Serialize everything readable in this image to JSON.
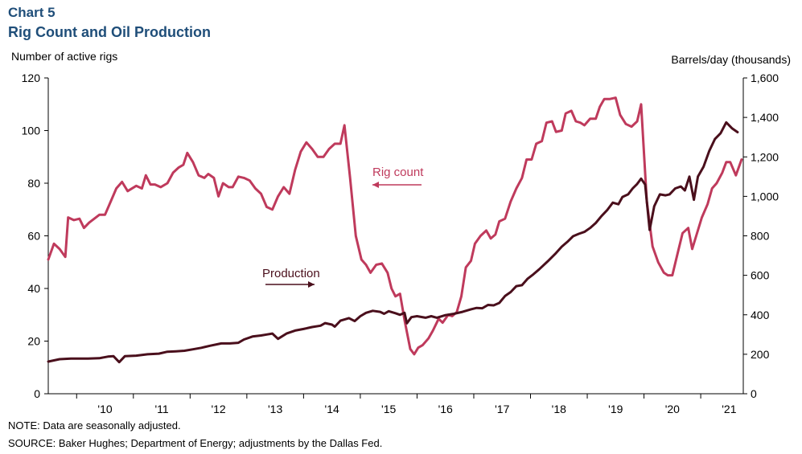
{
  "header": {
    "chart_number": "Chart 5",
    "title": "Rig Count and Oil Production"
  },
  "footer": {
    "note": "NOTE: Data are seasonally adjusted.",
    "source": "SOURCE: Baker Hughes; Department of Energy; adjustments by the Dallas Fed."
  },
  "colors": {
    "rig_count": "#bf3a5c",
    "production": "#4a0f1c",
    "axis": "#000000"
  },
  "chart_data": {
    "type": "line",
    "ylabel_left": "Number of active rigs",
    "ylabel_right": "Barrels/day (thousands)",
    "ylim_left": [
      0,
      120
    ],
    "ylim_right": [
      0,
      1600
    ],
    "yticks_left": [
      "0",
      "20",
      "40",
      "60",
      "80",
      "100",
      "120"
    ],
    "yticks_right": [
      "0",
      "200",
      "400",
      "600",
      "800",
      "1,000",
      "1,200",
      "1,400",
      "1,600"
    ],
    "xlim": [
      2009.5,
      2021.75
    ],
    "xticks": [
      {
        "x": 2010.5,
        "label": "'10"
      },
      {
        "x": 2011.5,
        "label": "'11"
      },
      {
        "x": 2012.5,
        "label": "'12"
      },
      {
        "x": 2013.5,
        "label": "'13"
      },
      {
        "x": 2014.5,
        "label": "'14"
      },
      {
        "x": 2015.5,
        "label": "'15"
      },
      {
        "x": 2016.5,
        "label": "'16"
      },
      {
        "x": 2017.5,
        "label": "'17"
      },
      {
        "x": 2018.5,
        "label": "'18"
      },
      {
        "x": 2019.5,
        "label": "'19"
      },
      {
        "x": 2020.5,
        "label": "'20"
      },
      {
        "x": 2021.5,
        "label": "'21"
      }
    ],
    "legend": "inline",
    "grid": false,
    "annotations": [
      {
        "text": "Rig count",
        "series": "rig_count",
        "arrow": "left"
      },
      {
        "text": "Production",
        "series": "production",
        "arrow": "right"
      }
    ],
    "series": [
      {
        "name": "Rig count",
        "key": "rig_count",
        "axis": "left",
        "points": [
          [
            2009.5,
            51
          ],
          [
            2009.6,
            57
          ],
          [
            2009.7,
            55
          ],
          [
            2009.8,
            52
          ],
          [
            2009.85,
            67
          ],
          [
            2009.95,
            66
          ],
          [
            2010.05,
            66.5
          ],
          [
            2010.13,
            63
          ],
          [
            2010.22,
            65
          ],
          [
            2010.4,
            68
          ],
          [
            2010.5,
            68
          ],
          [
            2010.6,
            73
          ],
          [
            2010.7,
            78
          ],
          [
            2010.8,
            80.5
          ],
          [
            2010.9,
            77
          ],
          [
            2011.05,
            79
          ],
          [
            2011.15,
            78
          ],
          [
            2011.22,
            83
          ],
          [
            2011.3,
            79.5
          ],
          [
            2011.38,
            79.5
          ],
          [
            2011.48,
            78.5
          ],
          [
            2011.6,
            80
          ],
          [
            2011.7,
            84
          ],
          [
            2011.8,
            86
          ],
          [
            2011.88,
            87
          ],
          [
            2011.95,
            91.5
          ],
          [
            2012.05,
            88
          ],
          [
            2012.15,
            83
          ],
          [
            2012.25,
            82
          ],
          [
            2012.32,
            83.5
          ],
          [
            2012.42,
            82
          ],
          [
            2012.5,
            75
          ],
          [
            2012.58,
            80
          ],
          [
            2012.68,
            78.5
          ],
          [
            2012.75,
            78.5
          ],
          [
            2012.85,
            82.5
          ],
          [
            2012.95,
            82
          ],
          [
            2013.05,
            81
          ],
          [
            2013.15,
            78
          ],
          [
            2013.25,
            76
          ],
          [
            2013.35,
            71
          ],
          [
            2013.45,
            70
          ],
          [
            2013.55,
            75
          ],
          [
            2013.65,
            78.5
          ],
          [
            2013.75,
            76
          ],
          [
            2013.85,
            85
          ],
          [
            2013.95,
            92
          ],
          [
            2014.05,
            95.5
          ],
          [
            2014.15,
            93
          ],
          [
            2014.25,
            90
          ],
          [
            2014.35,
            90
          ],
          [
            2014.45,
            93
          ],
          [
            2014.55,
            95
          ],
          [
            2014.65,
            95
          ],
          [
            2014.72,
            102
          ],
          [
            2014.82,
            82
          ],
          [
            2014.92,
            60
          ],
          [
            2015.02,
            51
          ],
          [
            2015.1,
            49
          ],
          [
            2015.18,
            46
          ],
          [
            2015.28,
            49
          ],
          [
            2015.38,
            49.5
          ],
          [
            2015.48,
            46
          ],
          [
            2015.55,
            40
          ],
          [
            2015.62,
            37
          ],
          [
            2015.7,
            38
          ],
          [
            2015.78,
            28
          ],
          [
            2015.88,
            17
          ],
          [
            2015.95,
            15
          ],
          [
            2016.02,
            17.5
          ],
          [
            2016.1,
            18.5
          ],
          [
            2016.2,
            21
          ],
          [
            2016.28,
            24
          ],
          [
            2016.38,
            28.5
          ],
          [
            2016.45,
            27
          ],
          [
            2016.55,
            30
          ],
          [
            2016.62,
            29.5
          ],
          [
            2016.7,
            31
          ],
          [
            2016.78,
            37
          ],
          [
            2016.86,
            48
          ],
          [
            2016.95,
            50.5
          ],
          [
            2017.02,
            57
          ],
          [
            2017.12,
            60
          ],
          [
            2017.22,
            62
          ],
          [
            2017.3,
            59
          ],
          [
            2017.38,
            60.5
          ],
          [
            2017.45,
            65.5
          ],
          [
            2017.55,
            66.5
          ],
          [
            2017.65,
            73
          ],
          [
            2017.75,
            78
          ],
          [
            2017.85,
            82
          ],
          [
            2017.93,
            89
          ],
          [
            2018.02,
            89
          ],
          [
            2018.1,
            95
          ],
          [
            2018.2,
            96
          ],
          [
            2018.28,
            103
          ],
          [
            2018.38,
            103.5
          ],
          [
            2018.45,
            99.5
          ],
          [
            2018.55,
            100
          ],
          [
            2018.62,
            106.5
          ],
          [
            2018.72,
            107.5
          ],
          [
            2018.8,
            103.5
          ],
          [
            2018.88,
            103
          ],
          [
            2018.95,
            102
          ],
          [
            2019.05,
            104.5
          ],
          [
            2019.15,
            104.5
          ],
          [
            2019.22,
            109
          ],
          [
            2019.3,
            112
          ],
          [
            2019.4,
            112
          ],
          [
            2019.5,
            112.5
          ],
          [
            2019.58,
            106
          ],
          [
            2019.68,
            102.5
          ],
          [
            2019.78,
            101.5
          ],
          [
            2019.88,
            103.5
          ],
          [
            2019.95,
            110
          ],
          [
            2020.05,
            73
          ],
          [
            2020.15,
            56
          ],
          [
            2020.25,
            50
          ],
          [
            2020.35,
            46
          ],
          [
            2020.42,
            45
          ],
          [
            2020.5,
            45
          ],
          [
            2020.6,
            54
          ],
          [
            2020.68,
            61
          ],
          [
            2020.78,
            63
          ],
          [
            2020.85,
            55
          ],
          [
            2020.92,
            60
          ],
          [
            2021.02,
            67
          ],
          [
            2021.12,
            72
          ],
          [
            2021.2,
            78
          ],
          [
            2021.28,
            80
          ],
          [
            2021.38,
            84
          ],
          [
            2021.45,
            88
          ],
          [
            2021.52,
            88
          ],
          [
            2021.62,
            83
          ],
          [
            2021.72,
            89
          ]
        ]
      },
      {
        "name": "Production",
        "key": "production",
        "axis": "right",
        "points": [
          [
            2009.5,
            163
          ],
          [
            2009.7,
            175
          ],
          [
            2009.9,
            178
          ],
          [
            2010.2,
            178
          ],
          [
            2010.4,
            180
          ],
          [
            2010.55,
            188
          ],
          [
            2010.65,
            190
          ],
          [
            2010.75,
            160
          ],
          [
            2010.85,
            190
          ],
          [
            2011.05,
            193
          ],
          [
            2011.25,
            200
          ],
          [
            2011.45,
            203
          ],
          [
            2011.6,
            213
          ],
          [
            2011.75,
            215
          ],
          [
            2011.9,
            218
          ],
          [
            2012.05,
            225
          ],
          [
            2012.2,
            233
          ],
          [
            2012.35,
            243
          ],
          [
            2012.55,
            255
          ],
          [
            2012.7,
            255
          ],
          [
            2012.85,
            258
          ],
          [
            2012.95,
            275
          ],
          [
            2013.1,
            290
          ],
          [
            2013.25,
            295
          ],
          [
            2013.35,
            300
          ],
          [
            2013.45,
            305
          ],
          [
            2013.55,
            278
          ],
          [
            2013.7,
            305
          ],
          [
            2013.85,
            320
          ],
          [
            2014.0,
            328
          ],
          [
            2014.15,
            338
          ],
          [
            2014.3,
            345
          ],
          [
            2014.38,
            358
          ],
          [
            2014.5,
            350
          ],
          [
            2014.55,
            340
          ],
          [
            2014.65,
            370
          ],
          [
            2014.8,
            383
          ],
          [
            2014.9,
            368
          ],
          [
            2015.0,
            393
          ],
          [
            2015.1,
            410
          ],
          [
            2015.22,
            420
          ],
          [
            2015.35,
            415
          ],
          [
            2015.42,
            405
          ],
          [
            2015.5,
            418
          ],
          [
            2015.62,
            408
          ],
          [
            2015.7,
            400
          ],
          [
            2015.78,
            410
          ],
          [
            2015.82,
            357
          ],
          [
            2015.9,
            388
          ],
          [
            2016.0,
            393
          ],
          [
            2016.15,
            385
          ],
          [
            2016.25,
            393
          ],
          [
            2016.35,
            385
          ],
          [
            2016.5,
            398
          ],
          [
            2016.65,
            405
          ],
          [
            2016.8,
            415
          ],
          [
            2016.95,
            428
          ],
          [
            2017.05,
            435
          ],
          [
            2017.15,
            433
          ],
          [
            2017.25,
            450
          ],
          [
            2017.35,
            448
          ],
          [
            2017.45,
            460
          ],
          [
            2017.55,
            495
          ],
          [
            2017.65,
            515
          ],
          [
            2017.75,
            545
          ],
          [
            2017.85,
            550
          ],
          [
            2017.95,
            583
          ],
          [
            2018.05,
            605
          ],
          [
            2018.15,
            630
          ],
          [
            2018.3,
            670
          ],
          [
            2018.45,
            713
          ],
          [
            2018.55,
            745
          ],
          [
            2018.65,
            770
          ],
          [
            2018.75,
            798
          ],
          [
            2018.85,
            810
          ],
          [
            2018.95,
            820
          ],
          [
            2019.05,
            840
          ],
          [
            2019.15,
            865
          ],
          [
            2019.25,
            900
          ],
          [
            2019.35,
            930
          ],
          [
            2019.45,
            968
          ],
          [
            2019.55,
            960
          ],
          [
            2019.62,
            997
          ],
          [
            2019.72,
            1010
          ],
          [
            2019.8,
            1040
          ],
          [
            2019.88,
            1063
          ],
          [
            2019.95,
            1090
          ],
          [
            2020.02,
            1060
          ],
          [
            2020.1,
            830
          ],
          [
            2020.18,
            950
          ],
          [
            2020.28,
            1010
          ],
          [
            2020.38,
            1005
          ],
          [
            2020.45,
            1010
          ],
          [
            2020.55,
            1040
          ],
          [
            2020.65,
            1050
          ],
          [
            2020.72,
            1030
          ],
          [
            2020.8,
            1100
          ],
          [
            2020.88,
            983
          ],
          [
            2020.95,
            1100
          ],
          [
            2021.05,
            1150
          ],
          [
            2021.15,
            1230
          ],
          [
            2021.25,
            1290
          ],
          [
            2021.35,
            1320
          ],
          [
            2021.45,
            1375
          ],
          [
            2021.55,
            1345
          ],
          [
            2021.65,
            1325
          ]
        ]
      }
    ]
  }
}
